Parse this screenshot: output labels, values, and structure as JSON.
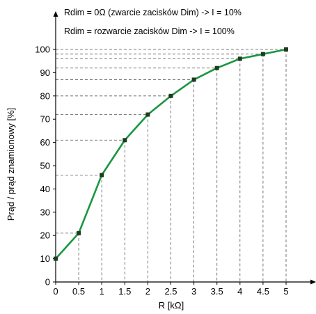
{
  "chart_data": {
    "type": "line",
    "xlabel": "R [kΩ]",
    "ylabel": "Prąd / prąd znamionowy [%]",
    "annotations": [
      "Rdim = 0Ω (zwarcie zacisków Dim) -> I = 10%",
      "Rdim = rozwarcie zacisków Dim -> I = 100%"
    ],
    "x": [
      0,
      0.5,
      1,
      1.5,
      2,
      2.5,
      3,
      3.5,
      4,
      4.5,
      5
    ],
    "xticks": [
      "0",
      "0.5",
      "1",
      "1.5",
      "2",
      "2.5",
      "3",
      "3.5",
      "4",
      "4.5",
      "5"
    ],
    "yticks": [
      "0",
      "10",
      "20",
      "30",
      "40",
      "50",
      "60",
      "70",
      "80",
      "90",
      "100"
    ],
    "series": [
      {
        "values": [
          10,
          21,
          46,
          61,
          72,
          80,
          87,
          92,
          96,
          98,
          100
        ]
      }
    ],
    "xlim": [
      0,
      5
    ],
    "ylim": [
      0,
      100
    ],
    "grid": false,
    "dashed_guides": true,
    "colors": {
      "line": "#1a9641",
      "marker": "#1f3b1f",
      "guide": "#555555",
      "axis": "#000000"
    }
  }
}
